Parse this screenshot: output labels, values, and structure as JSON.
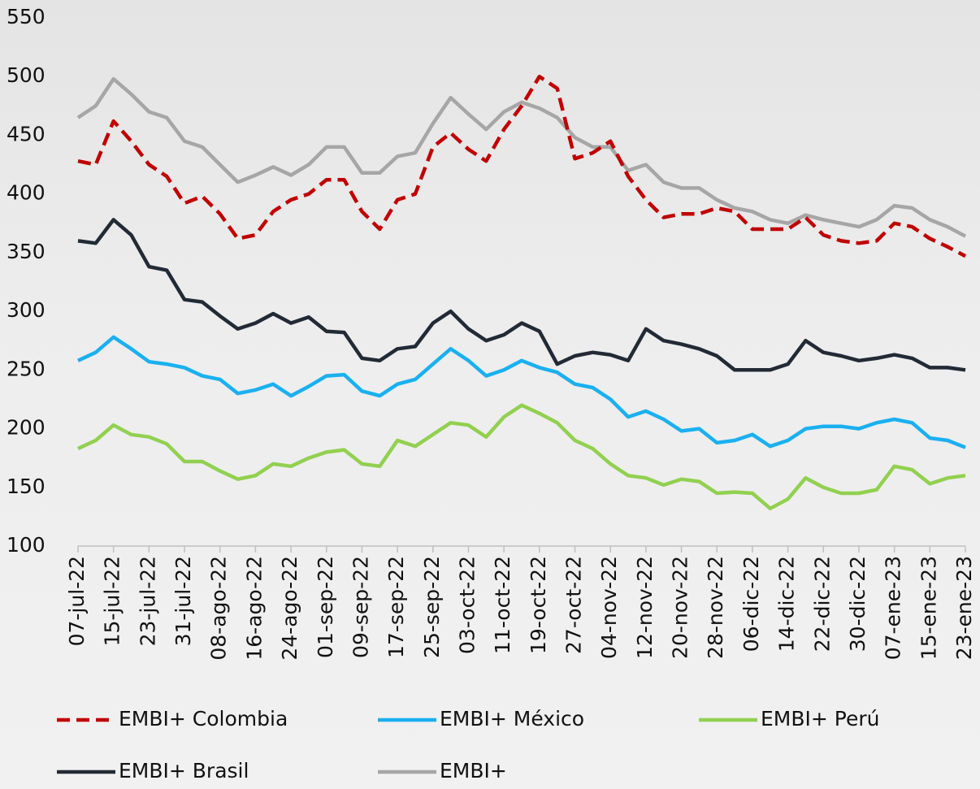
{
  "chart_data": {
    "type": "line",
    "categories": [
      "07-jul-22",
      null,
      "15-jul-22",
      null,
      "23-jul-22",
      null,
      "31-jul-22",
      null,
      "08-ago-22",
      null,
      "16-ago-22",
      null,
      "24-ago-22",
      null,
      "01-sep-22",
      null,
      "09-sep-22",
      null,
      "17-sep-22",
      null,
      "25-sep-22",
      null,
      "03-oct-22",
      null,
      "11-oct-22",
      null,
      "19-oct-22",
      null,
      "27-oct-22",
      null,
      "04-nov-22",
      null,
      "12-nov-22",
      null,
      "20-nov-22",
      null,
      "28-nov-22",
      null,
      "06-dic-22",
      null,
      "14-dic-22",
      null,
      "22-dic-22",
      null,
      "30-dic-22",
      null,
      "07-ene-23",
      null,
      "15-ene-23",
      null,
      "23-ene-23"
    ],
    "series": [
      {
        "name": "EMBI+ Colombia",
        "color": "#c00000",
        "dashed": true,
        "values": [
          428,
          425,
          462,
          445,
          425,
          415,
          392,
          398,
          383,
          362,
          365,
          385,
          395,
          400,
          412,
          412,
          385,
          370,
          395,
          400,
          440,
          452,
          438,
          428,
          455,
          475,
          500,
          490,
          430,
          435,
          445,
          415,
          395,
          380,
          383,
          383,
          388,
          385,
          370,
          370,
          370,
          380,
          365,
          360,
          358,
          360,
          375,
          372,
          362,
          355,
          347
        ]
      },
      {
        "name": "EMBI+ México",
        "color": "#1ab0f0",
        "values": [
          258,
          265,
          278,
          268,
          257,
          255,
          252,
          245,
          242,
          230,
          233,
          238,
          228,
          236,
          245,
          246,
          232,
          228,
          238,
          242,
          255,
          268,
          258,
          245,
          250,
          258,
          252,
          248,
          238,
          235,
          225,
          210,
          215,
          208,
          198,
          200,
          188,
          190,
          195,
          185,
          190,
          200,
          202,
          202,
          200,
          205,
          208,
          205,
          192,
          190,
          184
        ]
      },
      {
        "name": "EMBI+ Perú",
        "color": "#92d050",
        "values": [
          183,
          190,
          203,
          195,
          193,
          187,
          172,
          172,
          164,
          157,
          160,
          170,
          168,
          175,
          180,
          182,
          170,
          168,
          190,
          185,
          195,
          205,
          203,
          193,
          210,
          220,
          213,
          205,
          190,
          183,
          170,
          160,
          158,
          152,
          157,
          155,
          145,
          146,
          145,
          132,
          140,
          158,
          150,
          145,
          145,
          148,
          168,
          165,
          153,
          158,
          160
        ]
      },
      {
        "name": "EMBI+ Brasil",
        "color": "#222a35",
        "values": [
          360,
          358,
          378,
          365,
          338,
          335,
          310,
          308,
          296,
          285,
          290,
          298,
          290,
          295,
          283,
          282,
          260,
          258,
          268,
          270,
          290,
          300,
          285,
          275,
          280,
          290,
          283,
          255,
          262,
          265,
          263,
          258,
          285,
          275,
          272,
          268,
          262,
          250,
          250,
          250,
          255,
          275,
          265,
          262,
          258,
          260,
          263,
          260,
          252,
          252,
          250
        ]
      },
      {
        "name": "EMBI+",
        "color": "#a6a6a6",
        "values": [
          465,
          475,
          498,
          485,
          470,
          465,
          445,
          440,
          425,
          410,
          416,
          423,
          416,
          425,
          440,
          440,
          418,
          418,
          432,
          435,
          460,
          482,
          468,
          455,
          470,
          478,
          473,
          465,
          448,
          440,
          440,
          420,
          425,
          410,
          405,
          405,
          395,
          388,
          385,
          378,
          375,
          382,
          378,
          375,
          372,
          378,
          390,
          388,
          378,
          372,
          364
        ]
      }
    ],
    "ylim": [
      100,
      550
    ],
    "yticks": [
      100,
      150,
      200,
      250,
      300,
      350,
      400,
      450,
      500,
      550
    ],
    "grid": false
  }
}
